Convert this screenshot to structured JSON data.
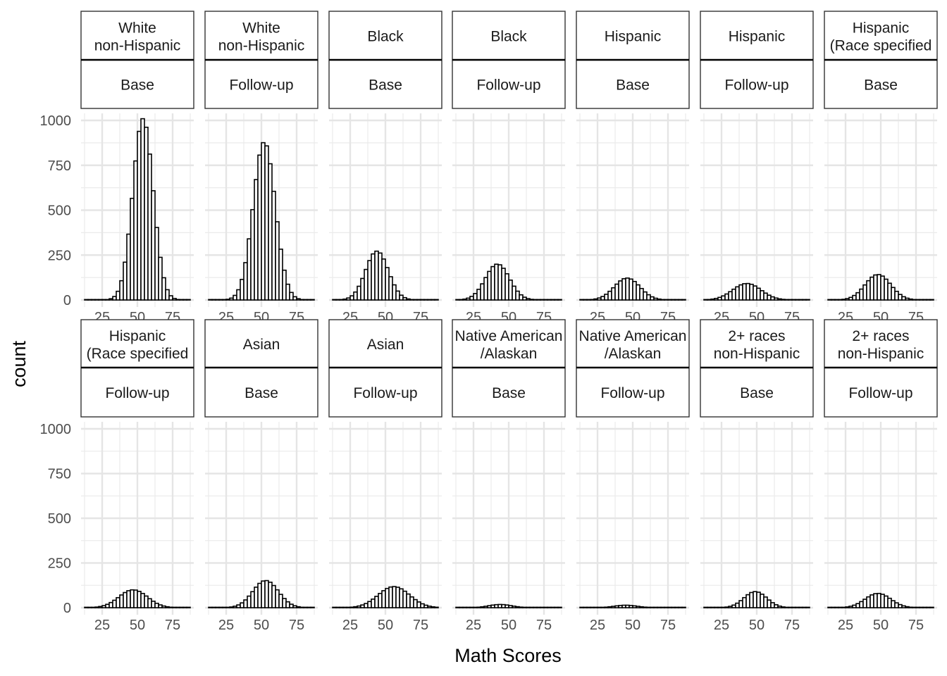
{
  "chart_data": {
    "type": "bar",
    "chart_kind": "faceted histogram",
    "xlabel": "Math Scores",
    "ylabel": "count",
    "xlim": [
      10,
      90
    ],
    "ylim": [
      0,
      1000
    ],
    "x_ticks": [
      "25",
      "50",
      "75"
    ],
    "y_ticks": [
      "0",
      "250",
      "500",
      "750",
      "1000"
    ],
    "grid": true,
    "bar_fill": "#ffffff",
    "bar_stroke": "#000000",
    "panels": [
      {
        "group": [
          "White",
          "non-Hispanic"
        ],
        "wave": "Base",
        "peak_x": 54,
        "peak": 1010,
        "spread": 7.2
      },
      {
        "group": [
          "White",
          "non-Hispanic"
        ],
        "wave": "Follow-up",
        "peak_x": 52,
        "peak": 880,
        "spread": 7.8
      },
      {
        "group": [
          "Black"
        ],
        "wave": "Base",
        "peak_x": 44,
        "peak": 272,
        "spread": 8.0
      },
      {
        "group": [
          "Black"
        ],
        "wave": "Follow-up",
        "peak_x": 42,
        "peak": 200,
        "spread": 8.5
      },
      {
        "group": [
          "Hispanic"
        ],
        "wave": "Base",
        "peak_x": 46,
        "peak": 122,
        "spread": 9.0
      },
      {
        "group": [
          "Hispanic"
        ],
        "wave": "Follow-up",
        "peak_x": 43,
        "peak": 92,
        "spread": 10.0
      },
      {
        "group": [
          "Hispanic",
          "(Race specified"
        ],
        "wave": "Base",
        "peak_x": 48,
        "peak": 142,
        "spread": 9.0
      },
      {
        "group": [
          "Hispanic",
          "(Race specified"
        ],
        "wave": "Follow-up",
        "peak_x": 47,
        "peak": 100,
        "spread": 10.0
      },
      {
        "group": [
          "Asian"
        ],
        "wave": "Base",
        "peak_x": 53,
        "peak": 152,
        "spread": 9.0
      },
      {
        "group": [
          "Asian"
        ],
        "wave": "Follow-up",
        "peak_x": 56,
        "peak": 118,
        "spread": 11.0
      },
      {
        "group": [
          "Native American",
          "/Alaskan"
        ],
        "wave": "Base",
        "peak_x": 44,
        "peak": 18,
        "spread": 8.0
      },
      {
        "group": [
          "Native American",
          "/Alaskan"
        ],
        "wave": "Follow-up",
        "peak_x": 45,
        "peak": 14,
        "spread": 8.0
      },
      {
        "group": [
          "2+ races",
          "non-Hispanic"
        ],
        "wave": "Base",
        "peak_x": 49,
        "peak": 90,
        "spread": 8.0
      },
      {
        "group": [
          "2+ races",
          "non-Hispanic"
        ],
        "wave": "Follow-up",
        "peak_x": 48,
        "peak": 80,
        "spread": 9.0
      }
    ]
  }
}
